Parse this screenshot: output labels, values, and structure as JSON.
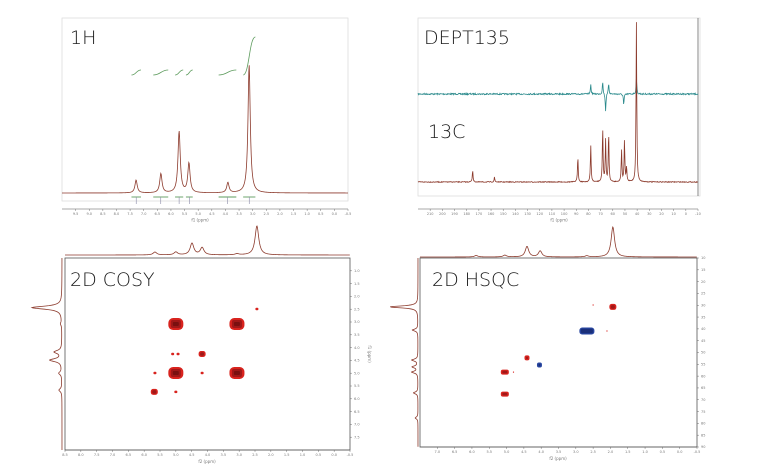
{
  "colors": {
    "spectrum": "#8c3a2c",
    "dept": "#2b8a8c",
    "integral": "#5e9c5e",
    "positive": "#d8231e",
    "positive_core": "#7a1010",
    "negative": "#2846a0",
    "frame": "#cfcfcf",
    "axis": "#555555"
  },
  "chart_data": [
    {
      "id": "h1",
      "type": "line",
      "title": "1H",
      "xlabel": "f1 (ppm)",
      "xlim": [
        10.0,
        -0.5
      ],
      "ticks": {
        "from": 9.5,
        "to": -0.5,
        "step": 0.5
      },
      "linewidth_ppm": 0.05,
      "peaks": [
        {
          "ppm": 7.28,
          "intensity": 10
        },
        {
          "ppm": 6.37,
          "intensity": 15
        },
        {
          "ppm": 5.7,
          "intensity": 48
        },
        {
          "ppm": 5.34,
          "intensity": 23
        },
        {
          "ppm": 3.91,
          "intensity": 8
        },
        {
          "ppm": 3.13,
          "intensity": 100
        }
      ],
      "integrals": [
        {
          "from": 7.45,
          "to": 7.1
        },
        {
          "from": 6.65,
          "to": 6.1
        },
        {
          "from": 5.85,
          "to": 5.55
        },
        {
          "from": 5.45,
          "to": 5.2
        },
        {
          "from": 4.25,
          "to": 3.6
        },
        {
          "from": 3.35,
          "to": 2.9
        }
      ]
    },
    {
      "id": "c13",
      "type": "line",
      "title": "13C",
      "dept_title": "DEPT135",
      "xlabel": "f1 (ppm)",
      "xlim": [
        220,
        -10
      ],
      "ticks": {
        "from": 210,
        "to": -10,
        "step": 10
      },
      "linewidth_ppm": 0.35,
      "peaks": [
        {
          "ppm": 175.1,
          "intensity": 7.5
        },
        {
          "ppm": 157.2,
          "intensity": 3
        },
        {
          "ppm": 88.7,
          "intensity": 16
        },
        {
          "ppm": 78.1,
          "intensity": 23
        },
        {
          "ppm": 68.3,
          "intensity": 34
        },
        {
          "ppm": 65.9,
          "intensity": 26
        },
        {
          "ppm": 63.4,
          "intensity": 31
        },
        {
          "ppm": 52.8,
          "intensity": 20
        },
        {
          "ppm": 50.4,
          "intensity": 26
        },
        {
          "ppm": 48.7,
          "intensity": 9
        },
        {
          "ppm": 40.6,
          "intensity": 100
        }
      ],
      "dept_peaks": [
        {
          "ppm": 78.1,
          "intensity": 6
        },
        {
          "ppm": 68.3,
          "intensity": 8
        },
        {
          "ppm": 65.9,
          "intensity": -11
        },
        {
          "ppm": 63.4,
          "intensity": 7
        },
        {
          "ppm": 51.0,
          "intensity": -7
        },
        {
          "ppm": 40.6,
          "intensity": 10
        }
      ]
    },
    {
      "id": "cosy",
      "type": "heatmap",
      "title": "2D COSY",
      "xlabel": "f2 (ppm)",
      "ylabel": "f1 (ppm)",
      "xlim": [
        8.5,
        -0.5
      ],
      "ylim": [
        0.5,
        8.0
      ],
      "xticks": {
        "from": 8.5,
        "to": -0.5,
        "step": 0.5
      },
      "yticks": {
        "from": 1.0,
        "to": 7.5,
        "step": 0.5
      },
      "projection_peaks": [
        {
          "ppm": 5.66,
          "intensity": 10
        },
        {
          "ppm": 5.0,
          "intensity": 10
        },
        {
          "ppm": 4.49,
          "intensity": 40
        },
        {
          "ppm": 4.17,
          "intensity": 25
        },
        {
          "ppm": 3.07,
          "intensity": 4
        },
        {
          "ppm": 2.44,
          "intensity": 100
        }
      ],
      "cross_peaks": [
        {
          "f2": 5.0,
          "f1": 3.08,
          "strength": "strong",
          "phase": "positive"
        },
        {
          "f2": 3.07,
          "f1": 3.08,
          "strength": "strong",
          "phase": "positive"
        },
        {
          "f2": 5.0,
          "f1": 4.99,
          "strength": "strong",
          "phase": "positive"
        },
        {
          "f2": 3.07,
          "f1": 4.99,
          "strength": "strong",
          "phase": "positive"
        },
        {
          "f2": 4.17,
          "f1": 4.25,
          "strength": "medium",
          "phase": "positive"
        },
        {
          "f2": 5.1,
          "f1": 4.25,
          "strength": "weak",
          "phase": "positive"
        },
        {
          "f2": 4.93,
          "f1": 4.25,
          "strength": "weak",
          "phase": "positive"
        },
        {
          "f2": 2.44,
          "f1": 2.49,
          "strength": "weak",
          "phase": "positive"
        },
        {
          "f2": 5.68,
          "f1": 5.73,
          "strength": "medium",
          "phase": "positive"
        },
        {
          "f2": 5.66,
          "f1": 4.99,
          "strength": "weak",
          "phase": "positive"
        },
        {
          "f2": 4.17,
          "f1": 4.99,
          "strength": "weak",
          "phase": "positive"
        },
        {
          "f2": 5.0,
          "f1": 5.73,
          "strength": "weak",
          "phase": "positive"
        }
      ]
    },
    {
      "id": "hsqc",
      "type": "heatmap",
      "title": "2D HSQC",
      "xlabel": "f2 (ppm)",
      "ylabel": "f1 (ppm)",
      "xlim": [
        7.5,
        -0.5
      ],
      "ylim": [
        10,
        90
      ],
      "xticks": {
        "from": 7.0,
        "to": -0.5,
        "step": 0.5
      },
      "yticks": {
        "from": 10,
        "to": 90,
        "step": 5
      },
      "projection_peaks": [
        {
          "ppm": 5.88,
          "intensity": 5
        },
        {
          "ppm": 5.05,
          "intensity": 6
        },
        {
          "ppm": 4.41,
          "intensity": 35
        },
        {
          "ppm": 4.03,
          "intensity": 20
        },
        {
          "ppm": 2.68,
          "intensity": 4
        },
        {
          "ppm": 1.93,
          "intensity": 100
        }
      ],
      "f1_projection_peaks": [
        {
          "ppm": 30.7,
          "intensity": 100
        },
        {
          "ppm": 40.5,
          "intensity": 20
        },
        {
          "ppm": 53.2,
          "intensity": 22
        },
        {
          "ppm": 56.1,
          "intensity": 20
        },
        {
          "ppm": 58.3,
          "intensity": 22
        },
        {
          "ppm": 67.1,
          "intensity": 16
        },
        {
          "ppm": 77.7,
          "intensity": 10
        }
      ],
      "cross_peaks": [
        {
          "f2": 1.93,
          "f1": 30.7,
          "strength": "medium",
          "phase": "positive"
        },
        {
          "f2": 2.68,
          "f1": 40.9,
          "strength": "wide",
          "phase": "negative"
        },
        {
          "f2": 4.41,
          "f1": 52.3,
          "strength": "small",
          "phase": "positive"
        },
        {
          "f2": 4.05,
          "f1": 55.3,
          "strength": "small",
          "phase": "negative"
        },
        {
          "f2": 5.05,
          "f1": 58.3,
          "strength": "pair",
          "phase": "positive"
        },
        {
          "f2": 5.05,
          "f1": 67.6,
          "strength": "pair",
          "phase": "positive"
        },
        {
          "f2": 2.5,
          "f1": 29.9,
          "strength": "dot",
          "phase": "positive"
        },
        {
          "f2": 2.1,
          "f1": 40.9,
          "strength": "dot",
          "phase": "positive"
        },
        {
          "f2": 4.8,
          "f1": 58.3,
          "strength": "dot",
          "phase": "positive"
        }
      ]
    }
  ]
}
